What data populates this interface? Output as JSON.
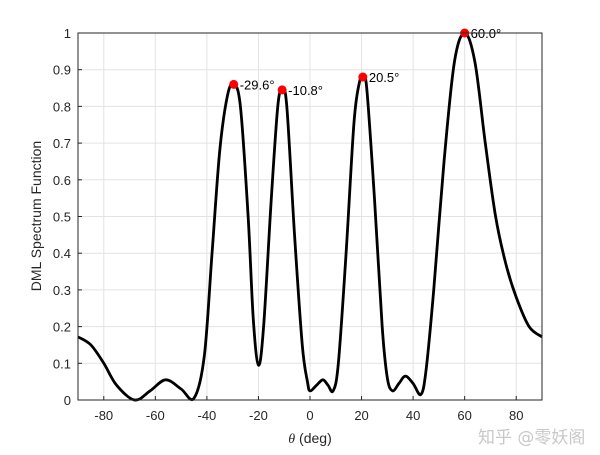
{
  "chart_data": {
    "type": "line",
    "xlabel_symbol": "θ",
    "xlabel_unit": " (deg)",
    "ylabel": "DML Spectrum Function",
    "xlim": [
      -90,
      90
    ],
    "ylim": [
      0,
      1
    ],
    "grid": true,
    "xticks": [
      -80,
      -60,
      -40,
      -20,
      0,
      20,
      40,
      60,
      80
    ],
    "yticks": [
      0,
      0.1,
      0.2,
      0.3,
      0.4,
      0.5,
      0.6,
      0.7,
      0.8,
      0.9,
      1
    ],
    "line_color": "#000000",
    "marker_color": "#ff0000",
    "x": [
      -90,
      -85,
      -80,
      -75,
      -68,
      -62,
      -56,
      -50,
      -45,
      -41,
      -38,
      -35,
      -32,
      -29.6,
      -27,
      -24,
      -22,
      -20,
      -18,
      -15,
      -12.5,
      -10.8,
      -9,
      -6,
      -3,
      -1,
      0,
      2.5,
      5,
      7,
      9,
      11,
      14,
      17,
      19,
      20.5,
      22,
      25,
      28,
      30,
      32,
      34.5,
      37,
      40,
      43,
      45,
      48,
      52,
      56,
      60,
      64,
      68,
      72,
      76,
      80,
      85,
      90
    ],
    "y": [
      0.172,
      0.15,
      0.1,
      0.04,
      0,
      0.025,
      0.055,
      0.03,
      0.005,
      0.12,
      0.4,
      0.68,
      0.83,
      0.86,
      0.8,
      0.5,
      0.22,
      0.095,
      0.2,
      0.55,
      0.8,
      0.845,
      0.8,
      0.45,
      0.15,
      0.05,
      0.025,
      0.04,
      0.055,
      0.04,
      0.025,
      0.1,
      0.4,
      0.75,
      0.86,
      0.88,
      0.85,
      0.55,
      0.2,
      0.06,
      0.025,
      0.045,
      0.065,
      0.045,
      0.015,
      0.08,
      0.3,
      0.65,
      0.92,
      1.0,
      0.92,
      0.7,
      0.5,
      0.37,
      0.28,
      0.2,
      0.172
    ],
    "peaks": [
      {
        "x": -29.6,
        "y": 0.86,
        "label": "-29.6°"
      },
      {
        "x": -10.8,
        "y": 0.845,
        "label": "-10.8°"
      },
      {
        "x": 20.5,
        "y": 0.88,
        "label": "20.5°"
      },
      {
        "x": 60.0,
        "y": 1.0,
        "label": "60.0°"
      }
    ]
  },
  "watermark": "知乎 @零妖阁"
}
